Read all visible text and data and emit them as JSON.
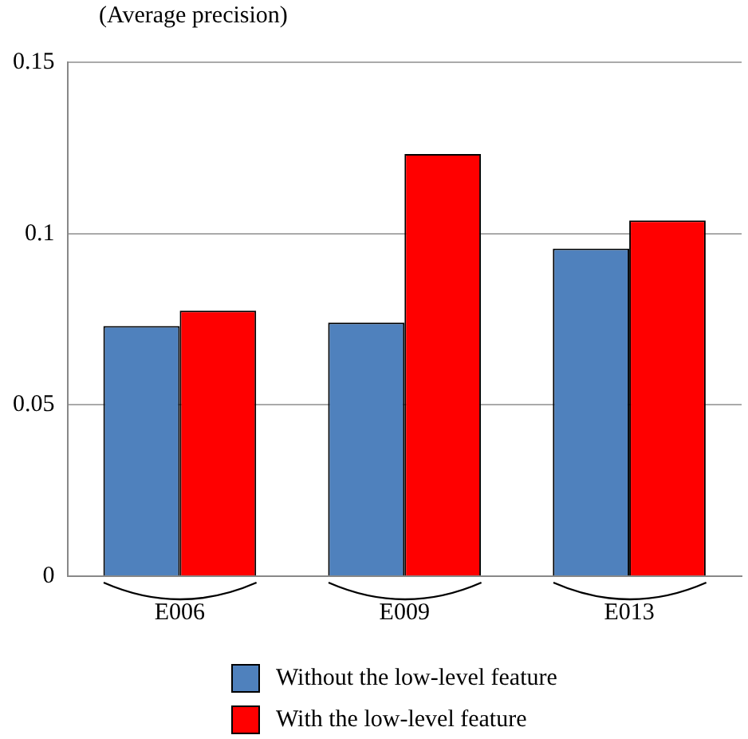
{
  "chart_data": {
    "type": "bar",
    "ylabel": "(Average precision)",
    "categories": [
      "E006",
      "E009",
      "E013"
    ],
    "series": [
      {
        "name": "Without the low-level feature",
        "color": "#4f81bd",
        "values": [
          0.073,
          0.074,
          0.0956
        ]
      },
      {
        "name": "With the low-level feature",
        "color": "#ff0000",
        "values": [
          0.0775,
          0.1232,
          0.1038
        ]
      }
    ],
    "ylim": [
      0,
      0.15
    ],
    "yticks": [
      0,
      0.05,
      0.1,
      0.15
    ],
    "grid": "y",
    "legend": "bottom"
  }
}
